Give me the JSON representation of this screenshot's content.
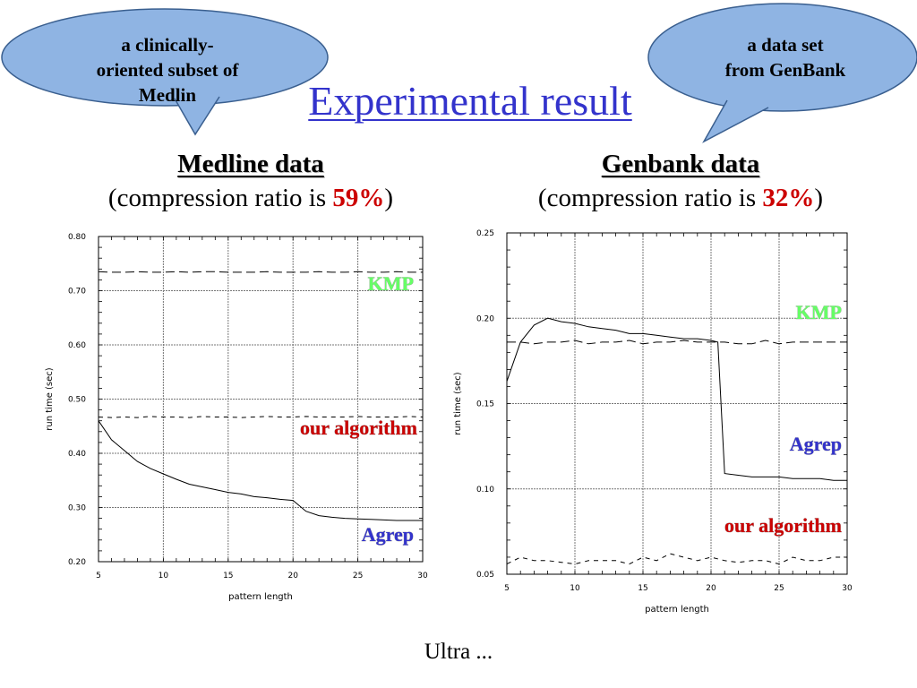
{
  "slide": {
    "title": "Experimental result",
    "footer": "Ultra ...",
    "accent_title_color": "#3333cc",
    "highlight_color": "#cc0000"
  },
  "callouts": {
    "left": {
      "lines": [
        "a clinically-",
        "oriented subset of",
        "Medlin"
      ],
      "fill": "#8fb4e3"
    },
    "right": {
      "lines": [
        "a data set",
        "from GenBank"
      ],
      "fill": "#8fb4e3"
    }
  },
  "panels": {
    "left": {
      "name": "Medline data",
      "ratio_prefix": "(compression ratio is ",
      "ratio_value": "59%",
      "ratio_suffix": ")"
    },
    "right": {
      "name": "Genbank data",
      "ratio_prefix": "(compression ratio is ",
      "ratio_value": "32%",
      "ratio_suffix": ")"
    }
  },
  "chart_data": [
    {
      "type": "line",
      "xlabel": "pattern length",
      "ylabel": "run time (sec)",
      "xlim": [
        5,
        30
      ],
      "ylim": [
        0.2,
        0.8
      ],
      "xticks": [
        "5",
        "10",
        "15",
        "20",
        "25",
        "30"
      ],
      "yticks": [
        "0.20",
        "0.30",
        "0.40",
        "0.50",
        "0.60",
        "0.70",
        "0.80"
      ],
      "grid": true,
      "series": [
        {
          "name": "KMP",
          "style": "long-dash",
          "label_color": "#66ff66",
          "x": [
            5,
            6,
            7,
            8,
            9,
            10,
            11,
            12,
            13,
            14,
            15,
            16,
            17,
            18,
            19,
            20,
            21,
            22,
            23,
            24,
            25,
            26,
            27,
            28,
            29,
            30
          ],
          "y": [
            0.735,
            0.734,
            0.734,
            0.735,
            0.734,
            0.734,
            0.735,
            0.734,
            0.735,
            0.735,
            0.734,
            0.734,
            0.734,
            0.735,
            0.734,
            0.734,
            0.734,
            0.735,
            0.734,
            0.734,
            0.735,
            0.734,
            0.734,
            0.735,
            0.734,
            0.734
          ]
        },
        {
          "name": "our algorithm",
          "style": "short-dash",
          "label_color": "#cc0000",
          "x": [
            5,
            6,
            7,
            8,
            9,
            10,
            11,
            12,
            13,
            14,
            15,
            16,
            17,
            18,
            19,
            20,
            21,
            22,
            23,
            24,
            25,
            26,
            27,
            28,
            29,
            30
          ],
          "y": [
            0.467,
            0.466,
            0.467,
            0.466,
            0.468,
            0.467,
            0.467,
            0.466,
            0.468,
            0.467,
            0.467,
            0.466,
            0.467,
            0.468,
            0.467,
            0.467,
            0.468,
            0.467,
            0.467,
            0.467,
            0.468,
            0.467,
            0.467,
            0.467,
            0.468,
            0.467
          ]
        },
        {
          "name": "Agrep",
          "style": "solid",
          "label_color": "#3333cc",
          "x": [
            5,
            6,
            7,
            8,
            9,
            10,
            11,
            12,
            13,
            14,
            15,
            16,
            17,
            18,
            19,
            20,
            21,
            22,
            23,
            24,
            25,
            26,
            27,
            28,
            29,
            30
          ],
          "y": [
            0.46,
            0.425,
            0.405,
            0.385,
            0.372,
            0.362,
            0.352,
            0.343,
            0.338,
            0.333,
            0.328,
            0.325,
            0.32,
            0.318,
            0.315,
            0.313,
            0.293,
            0.285,
            0.282,
            0.28,
            0.279,
            0.278,
            0.277,
            0.276,
            0.276,
            0.276
          ]
        }
      ]
    },
    {
      "type": "line",
      "xlabel": "pattern length",
      "ylabel": "run time (sec)",
      "xlim": [
        5,
        30
      ],
      "ylim": [
        0.05,
        0.25
      ],
      "xticks": [
        "5",
        "10",
        "15",
        "20",
        "25",
        "30"
      ],
      "yticks": [
        "0.05",
        "0.10",
        "0.15",
        "0.20",
        "0.25"
      ],
      "grid": true,
      "series": [
        {
          "name": "KMP",
          "style": "long-dash",
          "label_color": "#66ff66",
          "x": [
            5,
            6,
            7,
            8,
            9,
            10,
            11,
            12,
            13,
            14,
            15,
            16,
            17,
            18,
            19,
            20,
            21,
            22,
            23,
            24,
            25,
            26,
            27,
            28,
            29,
            30
          ],
          "y": [
            0.186,
            0.186,
            0.185,
            0.186,
            0.186,
            0.187,
            0.185,
            0.186,
            0.186,
            0.187,
            0.185,
            0.186,
            0.186,
            0.187,
            0.186,
            0.186,
            0.186,
            0.185,
            0.185,
            0.187,
            0.185,
            0.186,
            0.186,
            0.186,
            0.186,
            0.186
          ]
        },
        {
          "name": "our algorithm",
          "style": "short-dash",
          "label_color": "#cc0000",
          "x": [
            5,
            6,
            7,
            8,
            9,
            10,
            11,
            12,
            13,
            14,
            15,
            16,
            17,
            18,
            19,
            20,
            21,
            22,
            23,
            24,
            25,
            26,
            27,
            28,
            29,
            30
          ],
          "y": [
            0.056,
            0.06,
            0.058,
            0.058,
            0.057,
            0.056,
            0.058,
            0.058,
            0.058,
            0.056,
            0.06,
            0.058,
            0.062,
            0.06,
            0.058,
            0.06,
            0.058,
            0.057,
            0.058,
            0.058,
            0.056,
            0.06,
            0.058,
            0.058,
            0.06,
            0.06
          ]
        },
        {
          "name": "Agrep",
          "style": "solid",
          "label_color": "#3333cc",
          "x": [
            5,
            6,
            7,
            8,
            9,
            10,
            11,
            12,
            13,
            14,
            15,
            16,
            17,
            18,
            19,
            20,
            20.5,
            21,
            22,
            23,
            24,
            25,
            26,
            27,
            28,
            29,
            30
          ],
          "y": [
            0.163,
            0.186,
            0.196,
            0.2,
            0.198,
            0.197,
            0.195,
            0.194,
            0.193,
            0.191,
            0.191,
            0.19,
            0.189,
            0.188,
            0.188,
            0.187,
            0.186,
            0.109,
            0.108,
            0.107,
            0.107,
            0.107,
            0.106,
            0.106,
            0.106,
            0.105,
            0.105
          ]
        }
      ]
    }
  ]
}
